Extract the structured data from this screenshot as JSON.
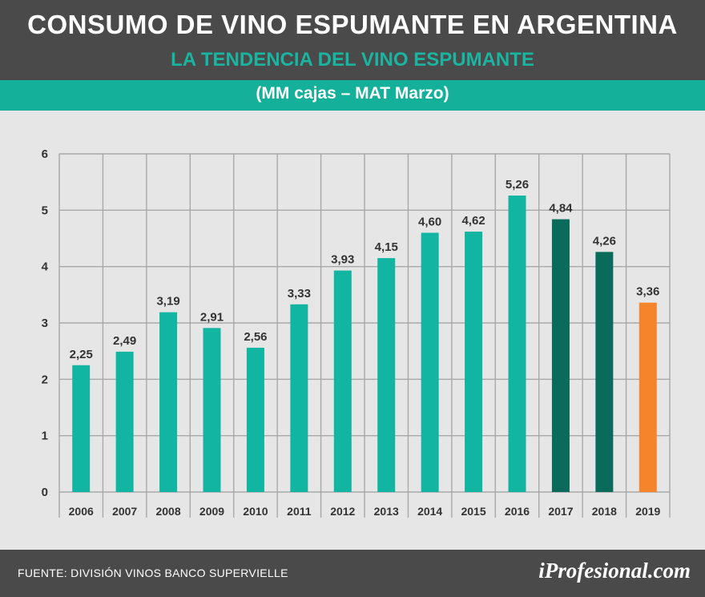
{
  "header": {
    "title": "CONSUMO DE VINO ESPUMANTE EN ARGENTINA",
    "subtitle": "LA TENDENCIA DEL VINO ESPUMANTE",
    "unit": "(MM cajas – MAT Marzo)"
  },
  "footer": {
    "source": "FUENTE: DIVISIÓN VINOS BANCO SUPERVIELLE",
    "logo": "iProfesional.com"
  },
  "colors": {
    "teal": "#12b5a1",
    "dark_teal": "#0b6b5b",
    "orange": "#f5842a"
  },
  "chart_data": {
    "type": "bar",
    "categories": [
      "2006",
      "2007",
      "2008",
      "2009",
      "2010",
      "2011",
      "2012",
      "2013",
      "2014",
      "2015",
      "2016",
      "2017",
      "2018",
      "2019"
    ],
    "values": [
      2.25,
      2.49,
      3.19,
      2.91,
      2.56,
      3.33,
      3.93,
      4.15,
      4.6,
      4.62,
      5.26,
      4.84,
      4.26,
      3.36
    ],
    "data_labels": [
      "2,25",
      "2,49",
      "3,19",
      "2,91",
      "2,56",
      "3,33",
      "3,93",
      "4,15",
      "4,60",
      "4,62",
      "5,26",
      "4,84",
      "4,26",
      "3,36"
    ],
    "bar_colors": [
      "teal",
      "teal",
      "teal",
      "teal",
      "teal",
      "teal",
      "teal",
      "teal",
      "teal",
      "teal",
      "teal",
      "dark_teal",
      "dark_teal",
      "orange"
    ],
    "yticks": [
      "0",
      "1",
      "2",
      "3",
      "4",
      "5",
      "6"
    ],
    "ylim": [
      0,
      6
    ],
    "grid": true
  }
}
